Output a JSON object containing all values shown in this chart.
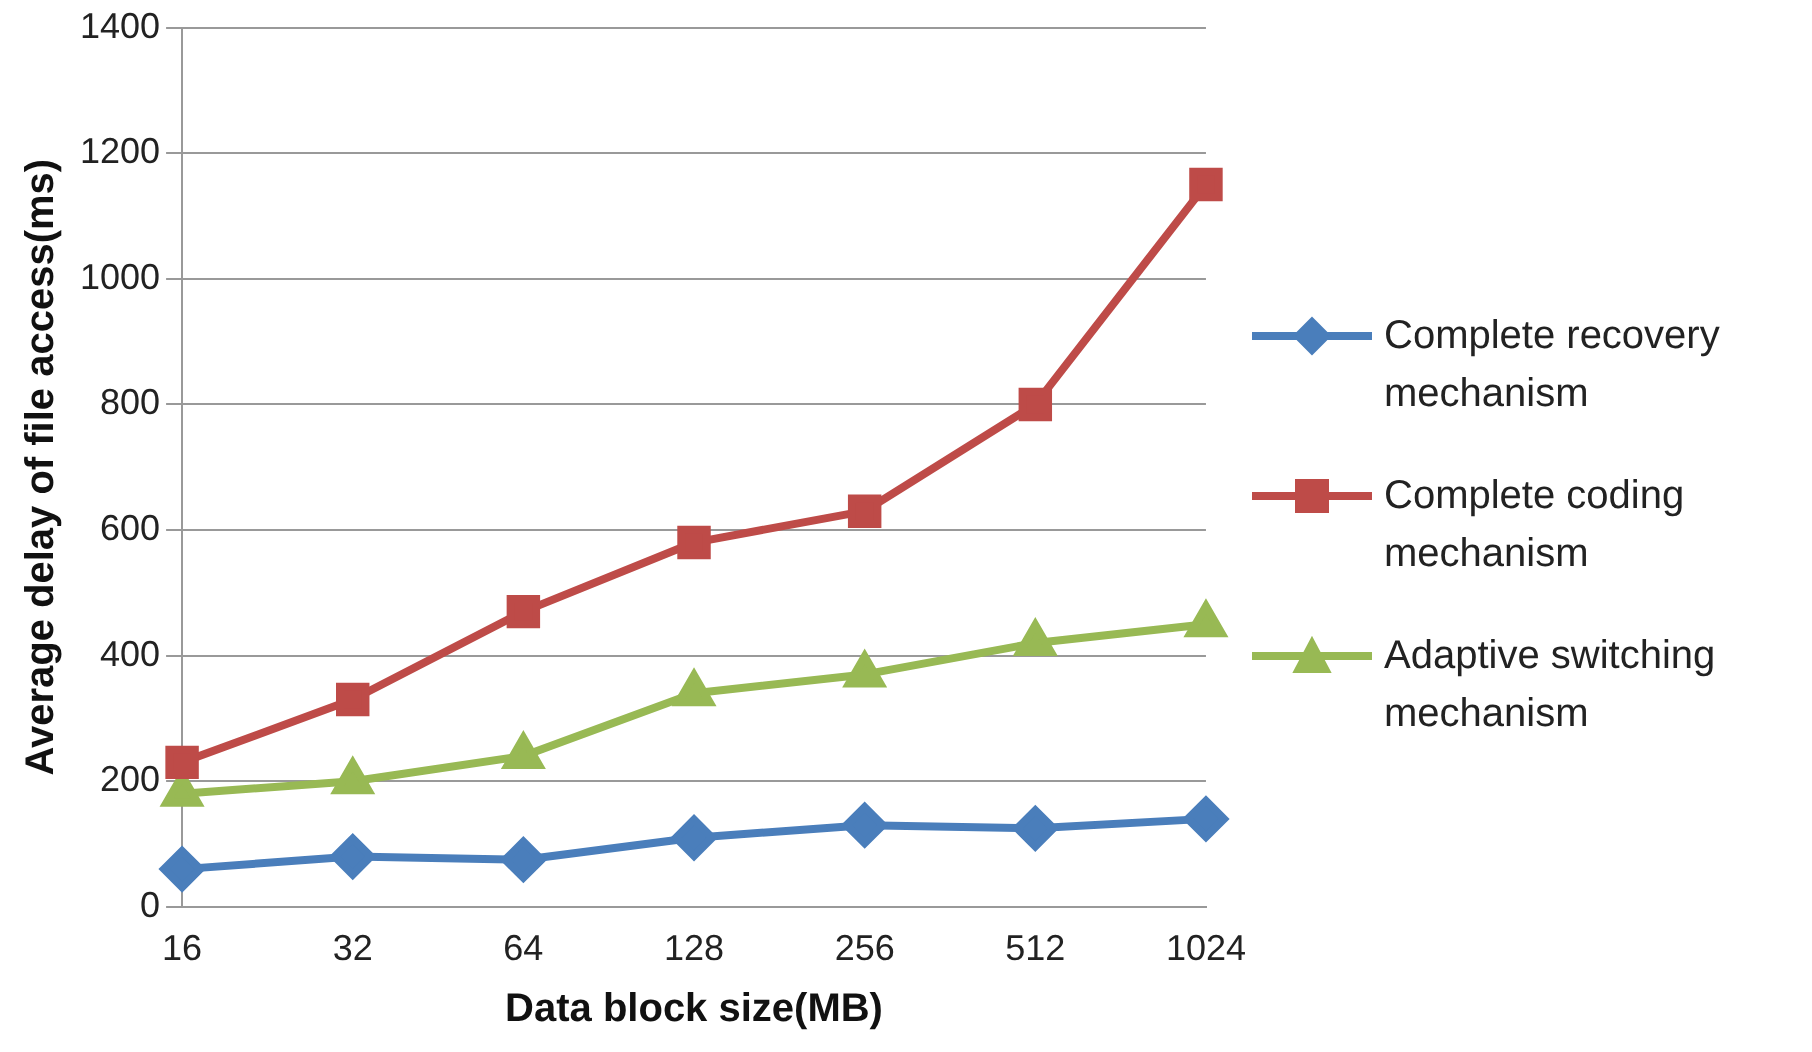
{
  "chart_data": {
    "type": "line",
    "xlabel": "Data block size(MB)",
    "ylabel": "Average delay of file access(ms)",
    "categories": [
      "16",
      "32",
      "64",
      "128",
      "256",
      "512",
      "1024"
    ],
    "series": [
      {
        "name": "Complete recovery mechanism",
        "color": "#4a7ebb",
        "marker": "diamond",
        "values": [
          60,
          80,
          75,
          110,
          130,
          125,
          140
        ]
      },
      {
        "name": "Complete coding mechanism",
        "color": "#be4b48",
        "marker": "square",
        "values": [
          230,
          330,
          470,
          580,
          630,
          800,
          1150
        ]
      },
      {
        "name": "Adaptive switching mechanism",
        "color": "#98b954",
        "marker": "triangle",
        "values": [
          180,
          200,
          240,
          340,
          370,
          420,
          450
        ]
      }
    ],
    "ylim": [
      0,
      1400
    ],
    "yticks": [
      0,
      200,
      400,
      600,
      800,
      1000,
      1200,
      1400
    ],
    "grid": "y",
    "legend": "right",
    "line_style": "solid"
  }
}
